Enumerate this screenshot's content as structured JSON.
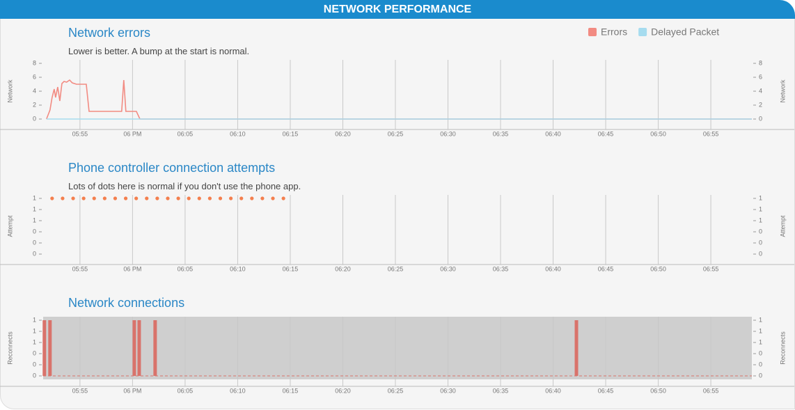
{
  "header": {
    "title": "NETWORK PERFORMANCE"
  },
  "chart_data": [
    {
      "type": "line",
      "title": "Network errors",
      "subtitle": "Lower is better. A bump at the start is normal.",
      "ylabel": "Network",
      "y2label": "Network",
      "xlim": [
        "17:51:30",
        "18:58:54"
      ],
      "xticks": [
        {
          "value": "17:55:00",
          "label": "05:55"
        },
        {
          "value": "18:00:00",
          "label": "06 PM"
        },
        {
          "value": "18:05:00",
          "label": "06:05"
        },
        {
          "value": "18:10:00",
          "label": "06:10"
        },
        {
          "value": "18:15:00",
          "label": "06:15"
        },
        {
          "value": "18:20:00",
          "label": "06:20"
        },
        {
          "value": "18:25:00",
          "label": "06:25"
        },
        {
          "value": "18:30:00",
          "label": "06:30"
        },
        {
          "value": "18:35:00",
          "label": "06:35"
        },
        {
          "value": "18:40:00",
          "label": "06:40"
        },
        {
          "value": "18:45:00",
          "label": "06:45"
        },
        {
          "value": "18:50:00",
          "label": "06:50"
        },
        {
          "value": "18:55:00",
          "label": "06:55"
        }
      ],
      "ylim": [
        0,
        8
      ],
      "yticks": [
        0,
        2,
        4,
        6,
        8
      ],
      "y2lim": [
        0,
        8
      ],
      "y2ticks": [
        0,
        2,
        4,
        6,
        8
      ],
      "grid": true,
      "legend": "top-right",
      "series": [
        {
          "name": "Errors",
          "color": "#f28b82",
          "x": [
            "17:51:49",
            "17:52:09",
            "17:52:21",
            "17:52:33",
            "17:52:41",
            "17:52:53",
            "17:53:05",
            "17:53:17",
            "17:53:29",
            "17:53:44",
            "17:54:01",
            "17:54:16",
            "17:54:40",
            "17:55:36",
            "17:55:52",
            "17:58:58",
            "17:59:10",
            "17:59:22",
            "18:00:22",
            "18:00:42",
            "18:58:54"
          ],
          "values": [
            0,
            1.3,
            3.1,
            4.3,
            3.1,
            4.6,
            2.6,
            5.1,
            5.4,
            5.3,
            5.6,
            5.2,
            5,
            5,
            1.1,
            1.1,
            5.6,
            1.1,
            1.1,
            0,
            0
          ]
        },
        {
          "name": "Delayed Packet",
          "color": "#a6dcef",
          "x": [
            "17:51:49",
            "18:58:54"
          ],
          "values": [
            0,
            0
          ]
        }
      ]
    },
    {
      "type": "scatter",
      "title": "Phone controller connection attempts",
      "subtitle": "Lots of dots here is normal if you don't use the phone app.",
      "ylabel": "Attempt",
      "y2label": "Attempt",
      "xlim": [
        "17:51:30",
        "18:58:54"
      ],
      "xticks": [
        {
          "value": "17:55:00",
          "label": "05:55"
        },
        {
          "value": "18:00:00",
          "label": "06 PM"
        },
        {
          "value": "18:05:00",
          "label": "06:05"
        },
        {
          "value": "18:10:00",
          "label": "06:10"
        },
        {
          "value": "18:15:00",
          "label": "06:15"
        },
        {
          "value": "18:20:00",
          "label": "06:20"
        },
        {
          "value": "18:25:00",
          "label": "06:25"
        },
        {
          "value": "18:30:00",
          "label": "06:30"
        },
        {
          "value": "18:35:00",
          "label": "06:35"
        },
        {
          "value": "18:40:00",
          "label": "06:40"
        },
        {
          "value": "18:45:00",
          "label": "06:45"
        },
        {
          "value": "18:50:00",
          "label": "06:50"
        },
        {
          "value": "18:55:00",
          "label": "06:55"
        }
      ],
      "ylim": [
        0,
        1
      ],
      "yticks": [
        0,
        {
          "value": 0.2,
          "label": "0"
        },
        {
          "value": 0.4,
          "label": "0"
        },
        {
          "value": 0.6,
          "label": "1"
        },
        {
          "value": 0.8,
          "label": "1"
        },
        1
      ],
      "y2lim": [
        0,
        1
      ],
      "y2ticks": [
        0,
        {
          "value": 0.2,
          "label": "0"
        },
        {
          "value": 0.4,
          "label": "0"
        },
        {
          "value": 0.6,
          "label": "1"
        },
        {
          "value": 0.8,
          "label": "1"
        },
        1
      ],
      "grid": true,
      "color": "#f47f4e",
      "x": [
        "17:52:21",
        "17:53:21",
        "17:54:21",
        "17:55:21",
        "17:56:21",
        "17:57:21",
        "17:58:21",
        "17:59:21",
        "18:00:21",
        "18:01:21",
        "18:02:21",
        "18:03:21",
        "18:04:21",
        "18:05:21",
        "18:06:21",
        "18:07:21",
        "18:08:21",
        "18:09:21",
        "18:10:21",
        "18:11:21",
        "18:12:21",
        "18:13:21",
        "18:14:21"
      ],
      "values": [
        1,
        1,
        1,
        1,
        1,
        1,
        1,
        1,
        1,
        1,
        1,
        1,
        1,
        1,
        1,
        1,
        1,
        1,
        1,
        1,
        1,
        1,
        1
      ]
    },
    {
      "type": "bar",
      "title": "Network connections",
      "ylabel": "Reconnects",
      "y2label": "Reconnects",
      "xlim": [
        "17:51:30",
        "18:58:54"
      ],
      "xticks": [
        {
          "value": "17:55:00",
          "label": "05:55"
        },
        {
          "value": "18:00:00",
          "label": "06 PM"
        },
        {
          "value": "18:05:00",
          "label": "06:05"
        },
        {
          "value": "18:10:00",
          "label": "06:10"
        },
        {
          "value": "18:15:00",
          "label": "06:15"
        },
        {
          "value": "18:20:00",
          "label": "06:20"
        },
        {
          "value": "18:25:00",
          "label": "06:25"
        },
        {
          "value": "18:30:00",
          "label": "06:30"
        },
        {
          "value": "18:35:00",
          "label": "06:35"
        },
        {
          "value": "18:40:00",
          "label": "06:40"
        },
        {
          "value": "18:45:00",
          "label": "06:45"
        },
        {
          "value": "18:50:00",
          "label": "06:50"
        },
        {
          "value": "18:55:00",
          "label": "06:55"
        }
      ],
      "ylim": [
        0,
        1
      ],
      "yticks": [
        0,
        {
          "value": 0.2,
          "label": "0"
        },
        {
          "value": 0.4,
          "label": "0"
        },
        {
          "value": 0.6,
          "label": "1"
        },
        {
          "value": 0.8,
          "label": "1"
        },
        1
      ],
      "y2lim": [
        0,
        1
      ],
      "y2ticks": [
        0,
        {
          "value": 0.2,
          "label": "0"
        },
        {
          "value": 0.4,
          "label": "0"
        },
        {
          "value": 0.6,
          "label": "1"
        },
        {
          "value": 0.8,
          "label": "1"
        },
        1
      ],
      "grid": true,
      "background": "#cfcfcf",
      "color": "#d9736b",
      "x": [
        "17:51:37",
        "17:52:09",
        "18:00:10",
        "18:00:38",
        "18:02:09",
        "18:42:13"
      ],
      "values": [
        1,
        1,
        1,
        1,
        1,
        1
      ]
    }
  ]
}
